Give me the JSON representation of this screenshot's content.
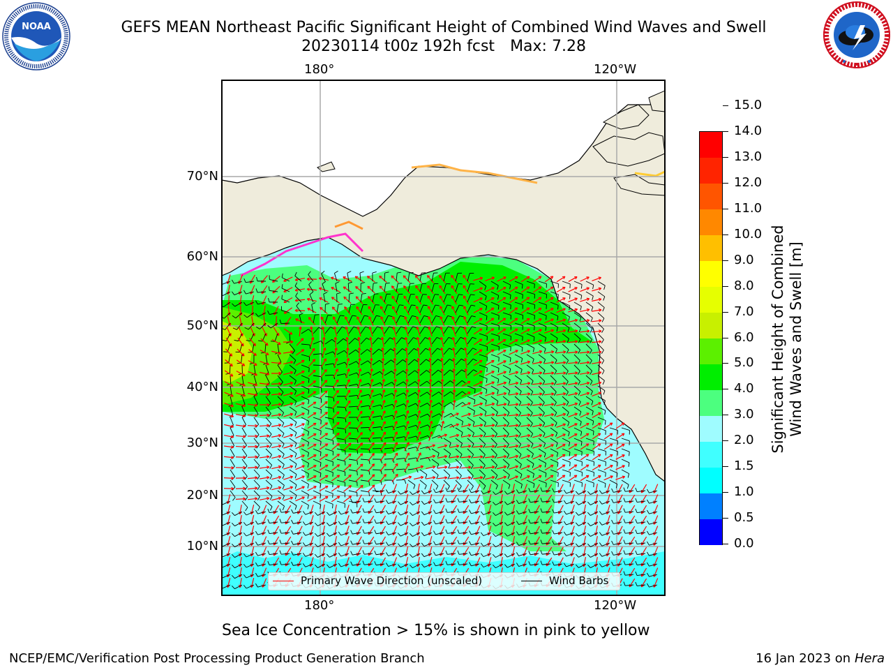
{
  "header": {
    "title_line1": "GEFS MEAN Northeast Pacific Significant Height of Combined Wind Waves and Swell",
    "title_run": "20230114 t00z 192h fcst",
    "title_max": "Max: 7.28"
  },
  "logos": {
    "noaa": {
      "text": "NOAA",
      "ring_text": "NATIONAL OCEANIC AND ATMOSPHERIC ADMINISTRATION · U.S. DEPARTMENT OF COMMERCE"
    },
    "nws": {
      "ring_text": "NATIONAL WEATHER SERVICE"
    }
  },
  "map_axes": {
    "lon_labels_top": [
      "180°",
      "120°W"
    ],
    "lon_labels_bottom": [
      "180°",
      "120°W"
    ],
    "lat_labels": [
      "70°N",
      "60°N",
      "50°N",
      "40°N",
      "30°N",
      "20°N",
      "10°N"
    ],
    "grid": true
  },
  "legend": {
    "wave_direction": "Primary Wave Direction (unscaled)",
    "wind_barbs": "Wind Barbs",
    "wave_color": "#ff0000",
    "barb_color": "#000000"
  },
  "colorbar": {
    "title_line1": "Significant Height of Combined",
    "title_line2": "Wind Waves and Swell [m]",
    "ticks": [
      "0.0",
      "0.5",
      "1.0",
      "1.5",
      "2.0",
      "3.0",
      "4.0",
      "5.0",
      "6.0",
      "7.0",
      "8.0",
      "9.0",
      "10.0",
      "11.0",
      "12.0",
      "13.0",
      "14.0",
      "15.0"
    ],
    "colors": [
      "#0000ff",
      "#0080ff",
      "#00ffff",
      "#40ffff",
      "#9ffcff",
      "#4cff7f",
      "#00ee00",
      "#5cf000",
      "#c8f000",
      "#e6ff00",
      "#ffff00",
      "#ffbf00",
      "#ff8800",
      "#ff5500",
      "#ff2400",
      "#ff0000"
    ]
  },
  "chart_data": {
    "type": "heatmap",
    "variable": "Significant Height of Combined Wind Waves and Swell [m]",
    "max_value": 7.28,
    "color_levels": [
      0.0,
      0.5,
      1.0,
      1.5,
      2.0,
      3.0,
      4.0,
      5.0,
      6.0,
      7.0,
      8.0,
      9.0,
      10.0,
      11.0,
      12.0,
      13.0,
      14.0,
      15.0
    ],
    "overlays": [
      "Primary Wave Direction (unscaled)",
      "Wind Barbs"
    ]
  },
  "footnote": "Sea Ice Concentration > 15% is shown in pink to yellow",
  "credits": {
    "left": "NCEP/EMC/Verification Post Processing Product Generation Branch",
    "right_prefix": "16 Jan 2023 on",
    "right_host": "Hera"
  }
}
